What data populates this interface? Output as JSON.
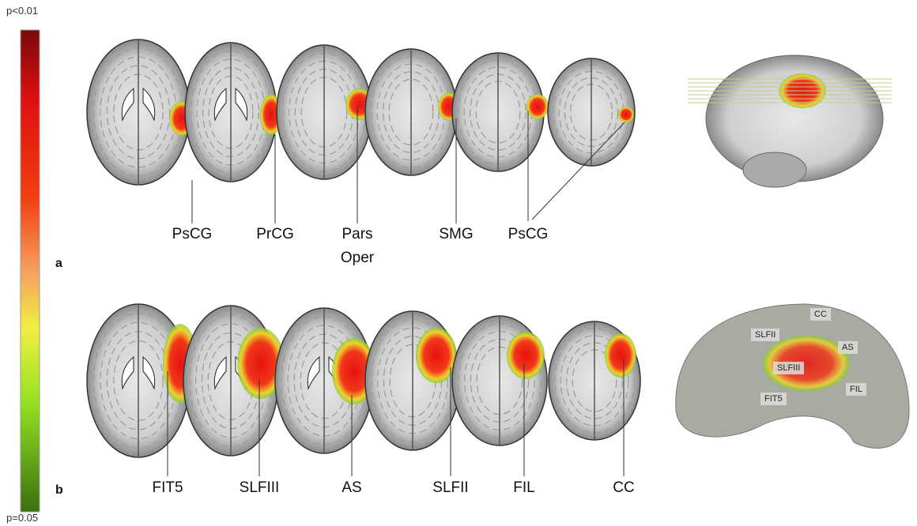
{
  "colorbar": {
    "top_label": "p<0.01",
    "bottom_label": "p=0.05"
  },
  "panels": [
    {
      "label": "a",
      "regions": [
        "PsCG",
        "PrCG",
        "Pars Oper",
        "SMG",
        "PsCG"
      ]
    },
    {
      "label": "b",
      "regions": [
        "FIT5",
        "SLFIII",
        "AS",
        "SLFII",
        "FIL",
        "CC"
      ],
      "tract_labels": [
        "SLFII",
        "CC",
        "AS",
        "SLFIII",
        "FIL",
        "FIT5"
      ]
    }
  ]
}
